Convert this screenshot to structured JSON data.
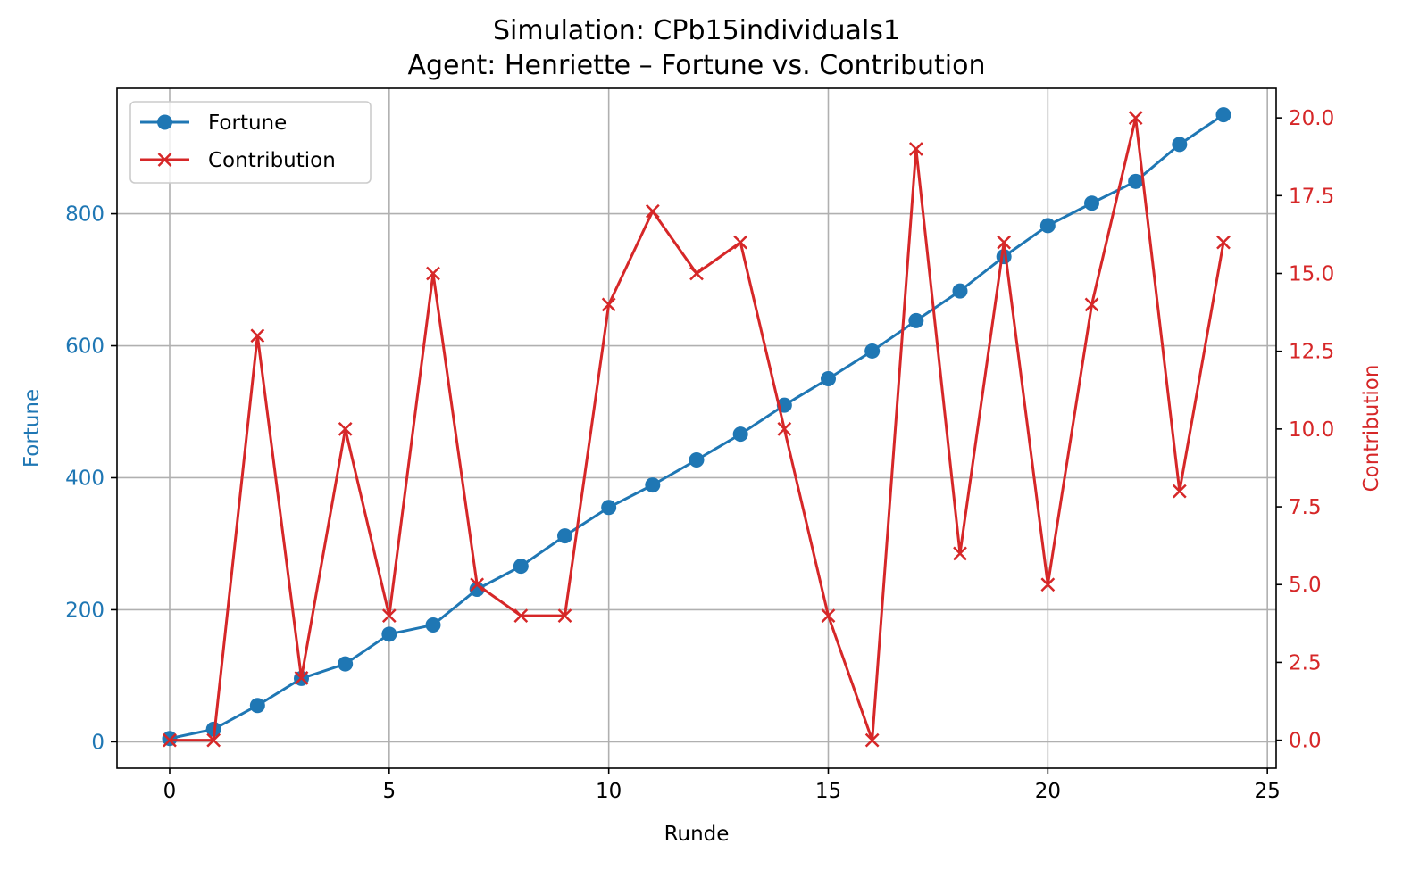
{
  "chart_data": {
    "type": "line",
    "title_line1": "Simulation: CPb15individuals1",
    "title_line2": "Agent: Henriette – Fortune vs. Contribution",
    "xlabel": "Runde",
    "ylabel_left": "Fortune",
    "ylabel_right": "Contribution",
    "x": [
      0,
      1,
      2,
      3,
      4,
      5,
      6,
      7,
      8,
      9,
      10,
      11,
      12,
      13,
      14,
      15,
      16,
      17,
      18,
      19,
      20,
      21,
      22,
      23,
      24
    ],
    "xlim": [
      -1.2,
      25.2
    ],
    "ylim_left": [
      -40,
      990
    ],
    "ylim_right": [
      -0.9,
      20.95
    ],
    "x_ticks": [
      0,
      5,
      10,
      15,
      20,
      25
    ],
    "x_tick_labels": [
      "0",
      "5",
      "10",
      "15",
      "20",
      "25"
    ],
    "y_left_ticks": [
      0,
      200,
      400,
      600,
      800
    ],
    "y_left_tick_labels": [
      "0",
      "200",
      "400",
      "600",
      "800"
    ],
    "y_right_ticks": [
      0,
      2.5,
      5,
      7.5,
      10,
      12.5,
      15,
      17.5,
      20
    ],
    "y_right_tick_labels": [
      "0.0",
      "2.5",
      "5.0",
      "7.5",
      "10.0",
      "12.5",
      "15.0",
      "17.5",
      "20.0"
    ],
    "grid": true,
    "legend_position": "top-left",
    "series": [
      {
        "name": "Fortune",
        "axis": "left",
        "color": "#1f77b4",
        "marker": "circle",
        "values": [
          5,
          19,
          55,
          96,
          118,
          163,
          177,
          231,
          266,
          312,
          355,
          389,
          427,
          466,
          510,
          550,
          592,
          638,
          683,
          735,
          782,
          816,
          849,
          905,
          950
        ]
      },
      {
        "name": "Contribution",
        "axis": "right",
        "color": "#d62728",
        "marker": "x",
        "values": [
          0,
          0,
          13,
          2,
          10,
          4,
          15,
          5,
          4,
          4,
          14,
          17,
          15,
          16,
          10,
          4,
          0,
          19,
          6,
          16,
          5,
          14,
          20,
          8,
          16
        ]
      }
    ]
  }
}
